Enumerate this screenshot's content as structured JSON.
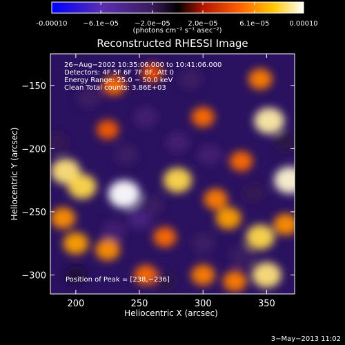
{
  "colorbar": {
    "tick_labels": [
      "-0.00010",
      "−6.1e−05",
      "−2.0e−05",
      "2.0e−05",
      "6.1e−05",
      "0.00010"
    ],
    "tick_values": [
      -0.0001,
      -6.1e-05,
      -2e-05,
      2e-05,
      6.1e-05,
      0.0001
    ],
    "range": [
      -0.0001,
      0.0001
    ],
    "unit_label": "(photons cm⁻² s⁻¹ asec⁻²)",
    "colors": [
      "#0000ff",
      "#5a2fb0",
      "#3b1b5c",
      "#000000",
      "#b41400",
      "#ff6400",
      "#ffc800",
      "#ffffff"
    ]
  },
  "chart_data": {
    "type": "heatmap",
    "title": "Reconstructed RHESSI Image",
    "xlabel": "Heliocentric X (arcsec)",
    "ylabel": "Heliocentric Y (arcsec)",
    "xlim": [
      180,
      372
    ],
    "ylim": [
      -315,
      -125
    ],
    "x_ticks": [
      200,
      250,
      300,
      350
    ],
    "y_ticks": [
      -150,
      -200,
      -250,
      -300
    ],
    "info_lines": [
      "26−Aug−2002 10:35:06.000 to 10:41:06.000",
      "Detectors: 4F 5F 6F 7F 8F, Att 0",
      "Energy Range: 25.0 − 50.0 keV",
      "Clean     Total counts: 3.86E+03"
    ],
    "peak_label": "Position of Peak = [238,−236]",
    "peak": [
      238,
      -236
    ],
    "sources": [
      {
        "x": 238,
        "y": -236,
        "v": 1.0
      },
      {
        "x": 192,
        "y": -218,
        "v": 0.85
      },
      {
        "x": 205,
        "y": -230,
        "v": 0.8
      },
      {
        "x": 368,
        "y": -225,
        "v": 0.95
      },
      {
        "x": 352,
        "y": -178,
        "v": 0.9
      },
      {
        "x": 350,
        "y": -300,
        "v": 0.85
      },
      {
        "x": 345,
        "y": -270,
        "v": 0.8
      },
      {
        "x": 280,
        "y": -225,
        "v": 0.8
      },
      {
        "x": 200,
        "y": -275,
        "v": 0.6
      },
      {
        "x": 225,
        "y": -280,
        "v": 0.55
      },
      {
        "x": 320,
        "y": -255,
        "v": 0.6
      },
      {
        "x": 300,
        "y": -300,
        "v": 0.5
      },
      {
        "x": 325,
        "y": -305,
        "v": 0.5
      },
      {
        "x": 345,
        "y": -145,
        "v": 0.5
      },
      {
        "x": 230,
        "y": -150,
        "v": 0.45
      },
      {
        "x": 225,
        "y": -185,
        "v": 0.4
      },
      {
        "x": 300,
        "y": -175,
        "v": 0.45
      },
      {
        "x": 330,
        "y": -210,
        "v": 0.45
      },
      {
        "x": 255,
        "y": -300,
        "v": 0.45
      },
      {
        "x": 260,
        "y": -140,
        "v": 0.35
      },
      {
        "x": 270,
        "y": -270,
        "v": 0.45
      },
      {
        "x": 310,
        "y": -240,
        "v": 0.5
      },
      {
        "x": 365,
        "y": -260,
        "v": 0.55
      },
      {
        "x": 190,
        "y": -255,
        "v": 0.55
      },
      {
        "x": 210,
        "y": -160,
        "v": -0.45
      },
      {
        "x": 255,
        "y": -175,
        "v": -0.5
      },
      {
        "x": 290,
        "y": -145,
        "v": -0.45
      },
      {
        "x": 280,
        "y": -195,
        "v": -0.5
      },
      {
        "x": 240,
        "y": -205,
        "v": -0.45
      },
      {
        "x": 305,
        "y": -205,
        "v": -0.5
      },
      {
        "x": 250,
        "y": -255,
        "v": -0.55
      },
      {
        "x": 260,
        "y": -245,
        "v": -0.45
      },
      {
        "x": 230,
        "y": -265,
        "v": -0.5
      },
      {
        "x": 330,
        "y": -285,
        "v": -0.45
      },
      {
        "x": 300,
        "y": -275,
        "v": -0.45
      },
      {
        "x": 200,
        "y": -300,
        "v": -0.3
      },
      {
        "x": 365,
        "y": -195,
        "v": -0.35
      },
      {
        "x": 340,
        "y": -235,
        "v": -0.4
      },
      {
        "x": 185,
        "y": -195,
        "v": -0.4
      },
      {
        "x": 270,
        "y": -305,
        "v": -0.35
      }
    ]
  },
  "footer": {
    "timestamp": "3−May−2013 11:02"
  }
}
